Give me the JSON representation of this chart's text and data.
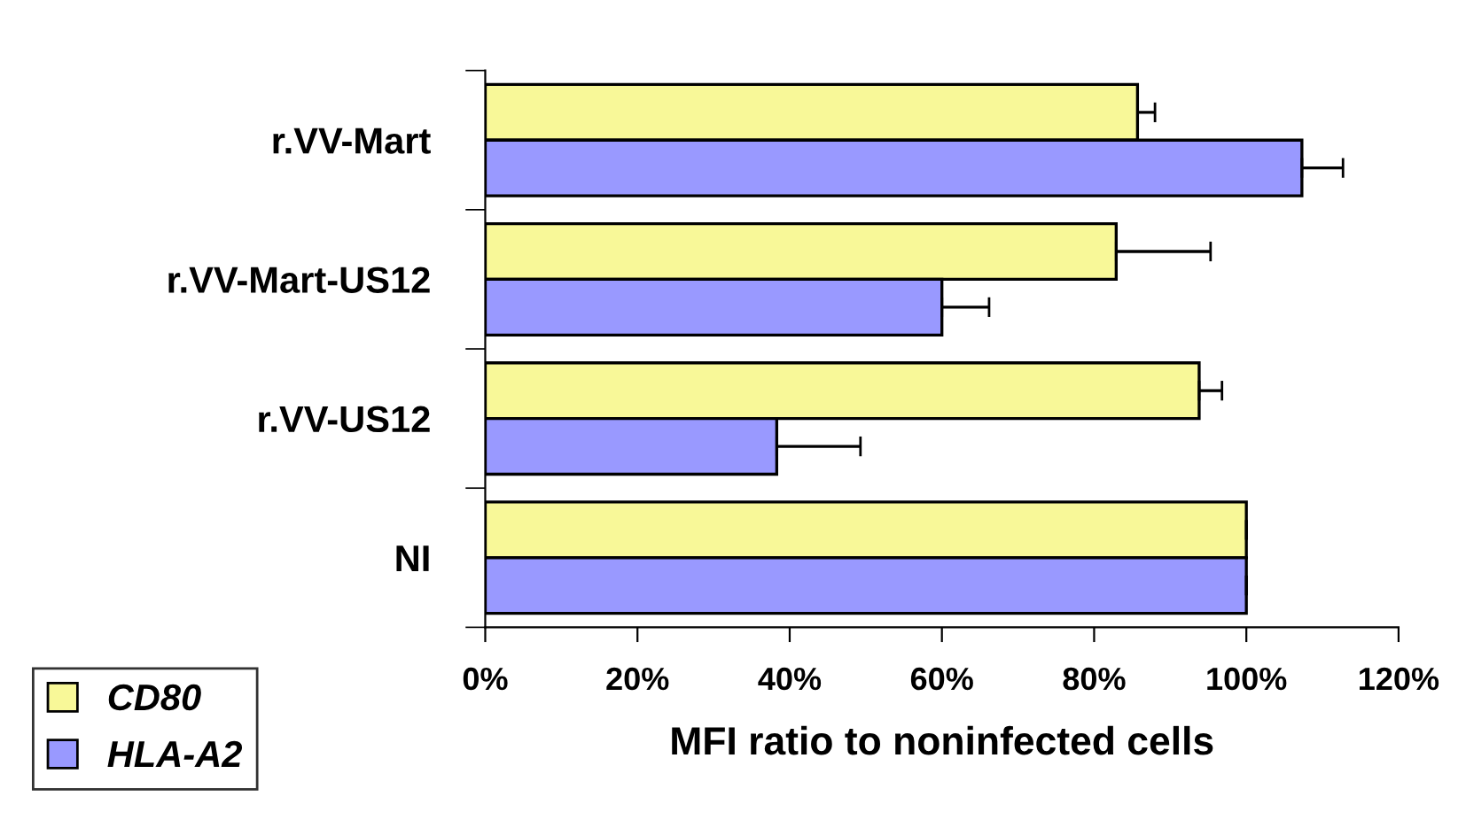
{
  "chart_data": {
    "type": "bar",
    "orientation": "horizontal",
    "xlabel": "MFI ratio to noninfected cells",
    "categories": [
      "r.VV-Mart",
      "r.VV-Mart-US12",
      "r.VV-US12",
      "NI"
    ],
    "series": [
      {
        "name": "CD80",
        "color": "#f8f898",
        "values": [
          85.7,
          82.9,
          93.8,
          100
        ],
        "errors": [
          2.3,
          12.4,
          3.0,
          null
        ]
      },
      {
        "name": "HLA-A2",
        "color": "#9999ff",
        "values": [
          107.3,
          60.0,
          38.3,
          100
        ],
        "errors": [
          5.4,
          6.2,
          11.0,
          null
        ]
      }
    ],
    "xlim": [
      0,
      120
    ],
    "xticks": [
      {
        "value": 0,
        "label": "0%"
      },
      {
        "value": 20,
        "label": "20%"
      },
      {
        "value": 40,
        "label": "40%"
      },
      {
        "value": 60,
        "label": "60%"
      },
      {
        "value": 80,
        "label": "80%"
      },
      {
        "value": 100,
        "label": "100%"
      },
      {
        "value": 120,
        "label": "120%"
      }
    ],
    "grid": false,
    "legend": "bottom left"
  }
}
